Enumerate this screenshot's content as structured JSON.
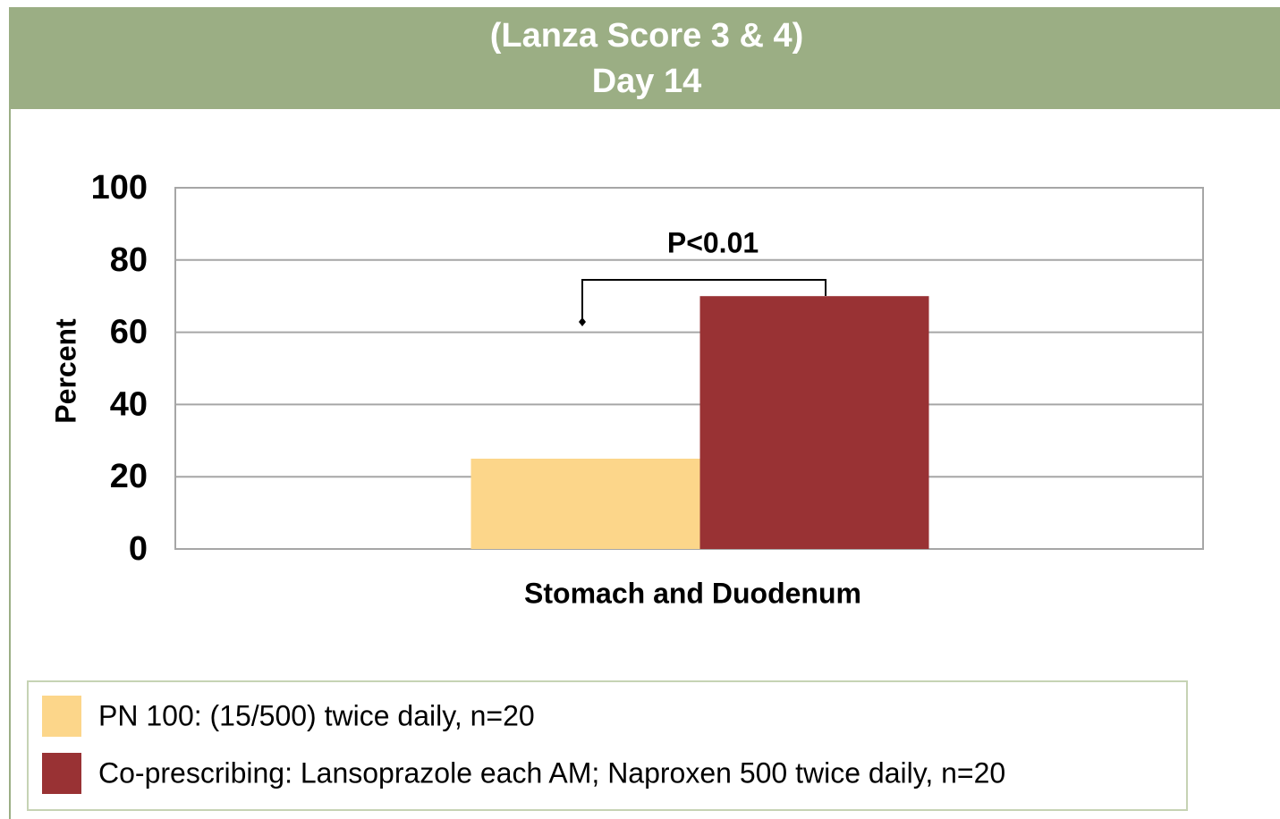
{
  "chart_data": {
    "type": "bar",
    "title": "(Lanza Score 3 & 4)",
    "subtitle": "Day 14",
    "ylabel": "Percent",
    "categories": [
      "Stomach and Duodenum"
    ],
    "series": [
      {
        "name": "PN 100: (15/500) twice daily, n=20",
        "color": "#fcd68a",
        "values": [
          25
        ]
      },
      {
        "name": "Co-prescribing: Lansoprazole each AM; Naproxen 500 twice daily, n=20",
        "color": "#993234",
        "values": [
          70
        ]
      }
    ],
    "annotation": "P<0.01",
    "ylim": [
      0,
      100
    ],
    "yticks": [
      0,
      20,
      40,
      60,
      80,
      100
    ],
    "grid": true
  }
}
